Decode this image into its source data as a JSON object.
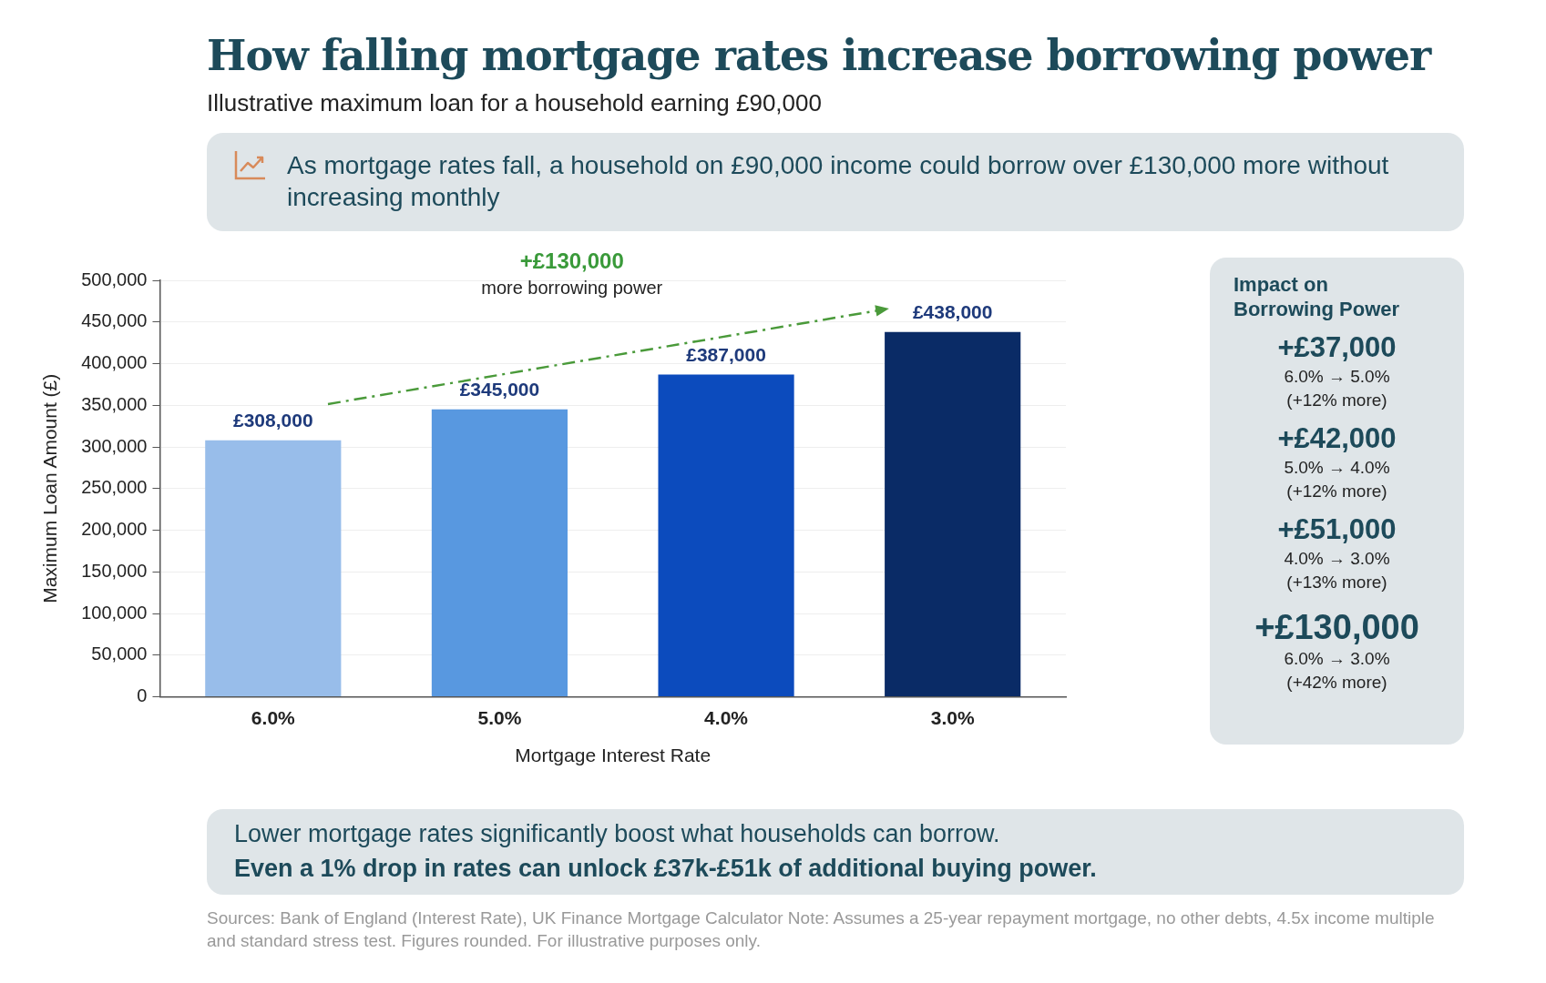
{
  "chart_data": {
    "type": "bar",
    "title": "How falling mortgage rates increase borrowing power",
    "subtitle": "Illustrative maximum loan for a household earning £90,000",
    "xlabel": "Mortgage Interest Rate",
    "ylabel": "Maximum Loan Amount (£)",
    "categories": [
      "6.0%",
      "5.0%",
      "4.0%",
      "3.0%"
    ],
    "values": [
      308000,
      345000,
      387000,
      438000
    ],
    "colors": [
      "#98bdea",
      "#5898e0",
      "#0c4bbd",
      "#0a2b66"
    ],
    "value_labels": [
      "£308,000",
      "£345,000",
      "£387,000",
      "£438,000"
    ],
    "ylim": [
      0,
      500000
    ],
    "yticks": [
      {
        "value": 0,
        "label": "0"
      },
      {
        "value": 50000,
        "label": "50,000"
      },
      {
        "value": 100000,
        "label": "100,000"
      },
      {
        "value": 150000,
        "label": "150,000"
      },
      {
        "value": 200000,
        "label": "200,000"
      },
      {
        "value": 250000,
        "label": "250,000"
      },
      {
        "value": 300000,
        "label": "300,000"
      },
      {
        "value": 350000,
        "label": "350,000"
      },
      {
        "value": 400000,
        "label": "400,000"
      },
      {
        "value": 450000,
        "label": "450,000"
      },
      {
        "value": 500000,
        "label": "500,000"
      }
    ],
    "grid": "y",
    "legend": false,
    "annotations": [
      "As mortgage rates fall, a household on £90,000 income could borrow over £130,000 more without increasing monthly",
      "+£130,000",
      "more borrowing power",
      "Impact on Borrowing Power",
      "+£37,000",
      "6.0% → 5.0%",
      "(+12% more)",
      "+£42,000",
      "5.0% → 4.0%",
      "(+12% more)",
      "+£51,000",
      "4.0% → 3.0%",
      "(+13% more)",
      "+£130,000",
      "6.0% → 3.0%",
      "(+42% more)",
      "Lower mortgage rates significantly boost what households can borrow.",
      "Even a 1% drop in rates can unlock £37k-£51k of additional buying power.",
      "Sources: Bank of England (Interest Rate), UK Finance Mortgage Calculator Note: Assumes a 25-year repayment mortgage, no other debts, 4.5x income multiple and standard stress test. Figures rounded. For illustrative purposes only."
    ]
  }
}
